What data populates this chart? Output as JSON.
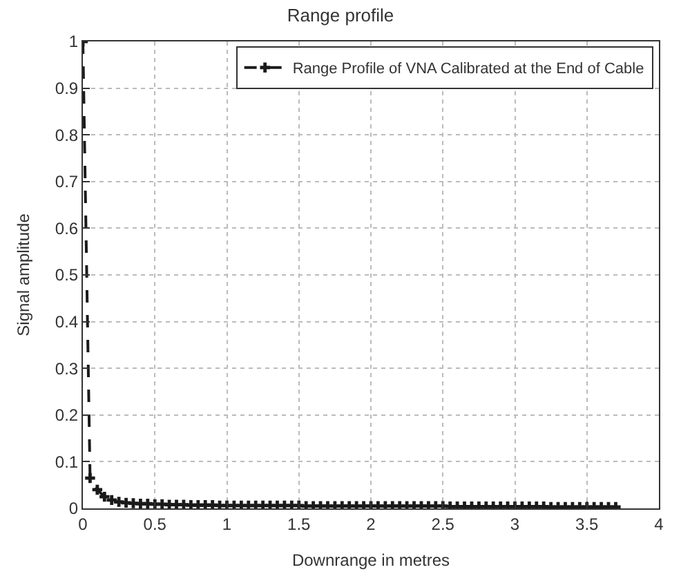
{
  "chart_data": {
    "type": "line",
    "title": "Range profile",
    "xlabel": "Downrange in metres",
    "ylabel": "Signal amplitude",
    "x": [
      0,
      0.05,
      0.1,
      0.15,
      0.2,
      0.25,
      0.3,
      0.35,
      0.4,
      0.45,
      0.5,
      0.55,
      0.6,
      0.65,
      0.7,
      0.75,
      0.8,
      0.85,
      0.9,
      0.95,
      1,
      1.05,
      1.1,
      1.15,
      1.2,
      1.25,
      1.3,
      1.35,
      1.4,
      1.45,
      1.5,
      1.55,
      1.6,
      1.65,
      1.7,
      1.75,
      1.8,
      1.85,
      1.9,
      1.95,
      2,
      2.05,
      2.1,
      2.15,
      2.2,
      2.25,
      2.3,
      2.35,
      2.4,
      2.45,
      2.5,
      2.55,
      2.6,
      2.65,
      2.7,
      2.75,
      2.8,
      2.85,
      2.9,
      2.95,
      3,
      3.05,
      3.1,
      3.15,
      3.2,
      3.25,
      3.3,
      3.35,
      3.4,
      3.45,
      3.5,
      3.55,
      3.6,
      3.65,
      3.7
    ],
    "series": [
      {
        "name": "Range Profile of VNA Calibrated at the End of Cable",
        "color": "#1a1a1a",
        "values": [
          1,
          0.065,
          0.04,
          0.025,
          0.018,
          0.014,
          0.012,
          0.011,
          0.01,
          0.01,
          0.009,
          0.009,
          0.008,
          0.008,
          0.008,
          0.007,
          0.007,
          0.007,
          0.007,
          0.006,
          0.006,
          0.006,
          0.006,
          0.006,
          0.006,
          0.006,
          0.006,
          0.006,
          0.006,
          0.006,
          0.006,
          0.005,
          0.005,
          0.005,
          0.005,
          0.005,
          0.005,
          0.005,
          0.005,
          0.005,
          0.005,
          0.005,
          0.005,
          0.005,
          0.005,
          0.005,
          0.005,
          0.005,
          0.005,
          0.005,
          0.005,
          0.004,
          0.004,
          0.004,
          0.004,
          0.004,
          0.004,
          0.004,
          0.004,
          0.004,
          0.004,
          0.004,
          0.004,
          0.004,
          0.004,
          0.003,
          0.003,
          0.003,
          0.003,
          0.003,
          0.003,
          0.003,
          0.003,
          0.003,
          0.003
        ]
      }
    ],
    "xlim": [
      0,
      4
    ],
    "xticks": [
      0,
      0.5,
      1,
      1.5,
      2,
      2.5,
      3,
      3.5,
      4
    ],
    "ylim": [
      0,
      1
    ],
    "yticks": [
      0,
      0.1,
      0.2,
      0.3,
      0.4,
      0.5,
      0.6,
      0.7,
      0.8,
      0.9,
      1
    ],
    "grid": true,
    "legend": "top right",
    "marker": "cross",
    "line_style": "dashed"
  }
}
